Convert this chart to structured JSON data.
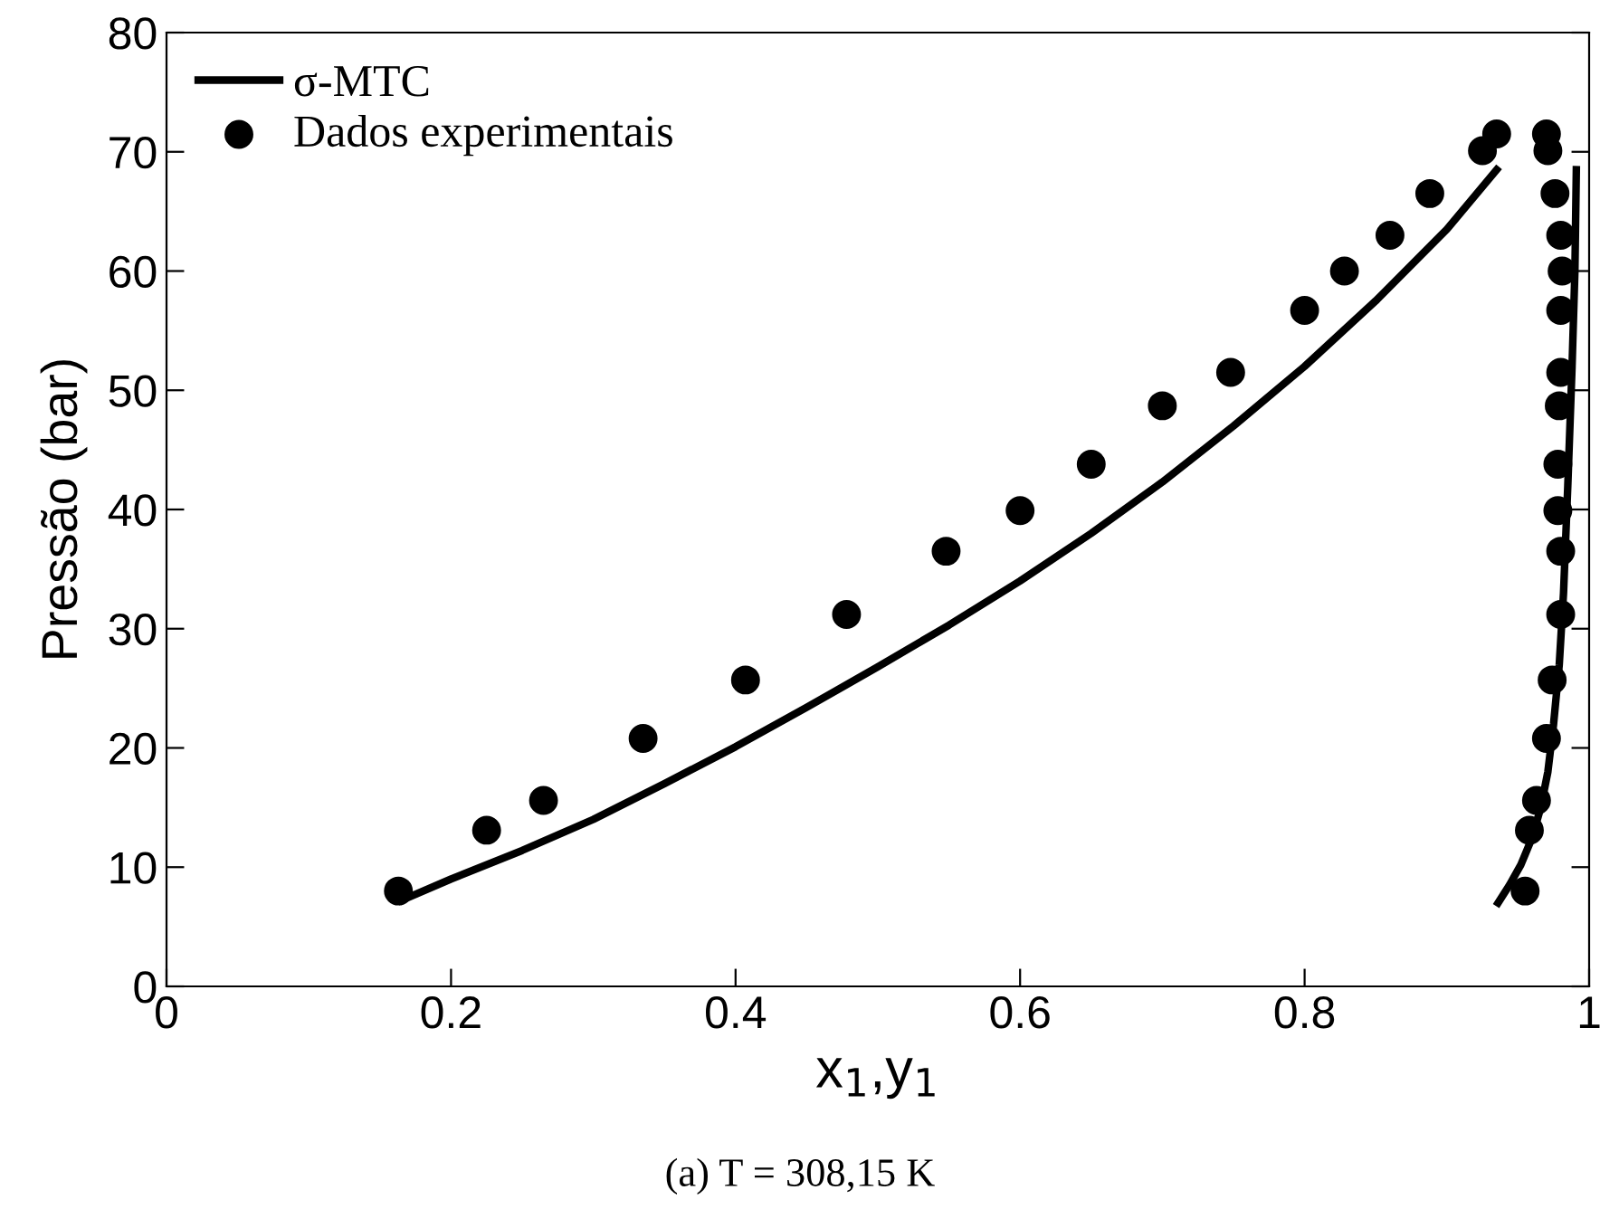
{
  "chart_data": {
    "type": "line",
    "xlabel": "x$_{1}$,y$_{1}$",
    "ylabel": "Pressão (bar)",
    "xlim": [
      0,
      1
    ],
    "ylim": [
      0,
      80
    ],
    "xticks": [
      0,
      0.2,
      0.4,
      0.6,
      0.8,
      1
    ],
    "yticks": [
      0,
      10,
      20,
      30,
      40,
      50,
      60,
      70,
      80
    ],
    "grid": false,
    "legend": "top left",
    "annotations": [
      "(a) T = 308,15 K"
    ],
    "series": [
      {
        "name": "σ-MTC",
        "color": "#000000",
        "line_style": "solid",
        "marker": "none",
        "x": [
          0.165,
          0.2,
          0.25,
          0.3,
          0.35,
          0.4,
          0.45,
          0.5,
          0.55,
          0.6,
          0.65,
          0.7,
          0.75,
          0.8,
          0.85,
          0.9,
          0.935
        ],
        "values": [
          7.2,
          9,
          11.4,
          14,
          17,
          20.1,
          23.4,
          26.8,
          30.3,
          34,
          38,
          42.3,
          47,
          52,
          57.5,
          63.5,
          68.5
        ]
      },
      {
        "color": "#000000",
        "line_style": "solid",
        "marker": "none",
        "x": [
          0.936,
          0.944,
          0.952,
          0.96,
          0.966,
          0.971,
          0.975,
          0.979,
          0.982,
          0.985,
          0.988,
          0.99,
          0.991
        ],
        "values": [
          7.0,
          8.5,
          10.2,
          12.5,
          15,
          18,
          22,
          27,
          33,
          42,
          52,
          60,
          68.5
        ]
      },
      {
        "name": "Dados experimentais",
        "type": "scatter",
        "color": "#000000",
        "marker": "circle",
        "x": [
          0.163,
          0.225,
          0.265,
          0.335,
          0.407,
          0.478,
          0.548,
          0.6,
          0.65,
          0.7,
          0.748,
          0.8,
          0.828,
          0.86,
          0.888,
          0.925,
          0.935,
          0.955,
          0.958,
          0.963,
          0.97,
          0.974,
          0.98,
          0.98,
          0.978,
          0.978,
          0.979,
          0.98,
          0.98,
          0.981,
          0.98,
          0.976,
          0.971,
          0.97
        ],
        "values": [
          8.0,
          13.1,
          15.6,
          20.8,
          25.7,
          31.2,
          36.5,
          39.9,
          43.8,
          48.7,
          51.5,
          56.7,
          60.0,
          63.0,
          66.5,
          70.1,
          71.5,
          8.0,
          13.1,
          15.6,
          20.8,
          25.7,
          31.2,
          36.5,
          39.9,
          43.8,
          48.7,
          51.5,
          56.7,
          60.0,
          63.0,
          66.5,
          70.1,
          71.5
        ]
      }
    ]
  }
}
